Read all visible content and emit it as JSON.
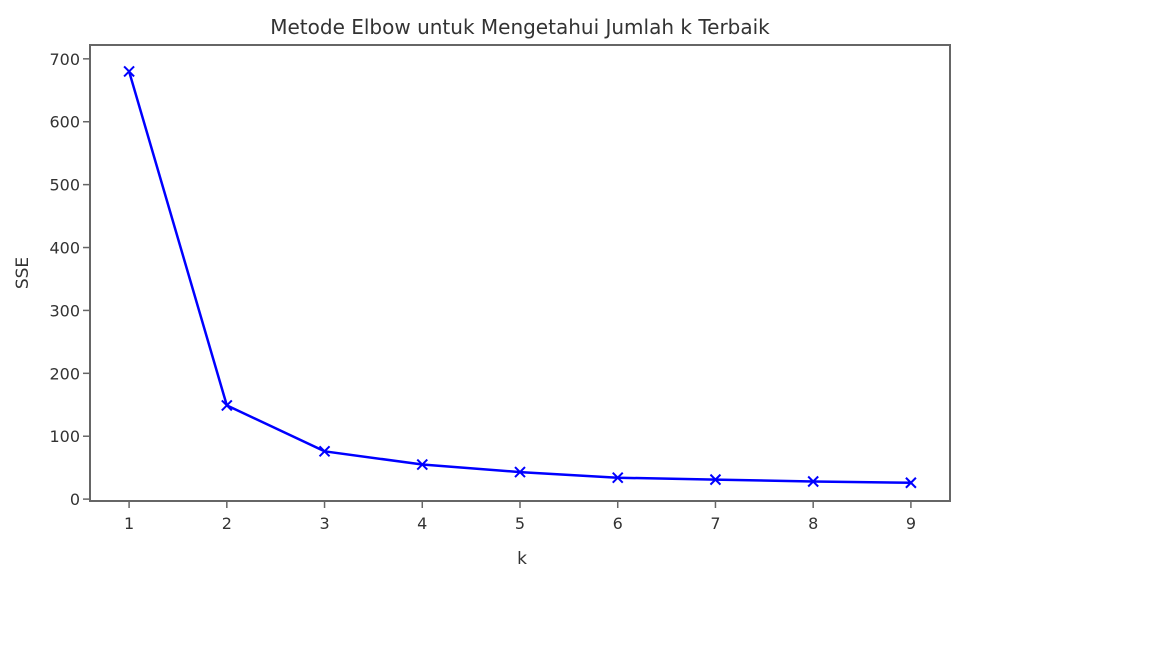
{
  "chart_data": {
    "type": "line",
    "title": "Metode Elbow untuk Mengetahui Jumlah k Terbaik",
    "xlabel": "k",
    "ylabel": "SSE",
    "x": [
      1,
      2,
      3,
      4,
      5,
      6,
      7,
      8,
      9
    ],
    "series": [
      {
        "values": [
          680,
          149,
          76,
          55,
          43,
          34,
          31,
          28,
          26
        ],
        "color": "#0000ff",
        "marker": "x"
      }
    ],
    "xticks": [
      "1",
      "2",
      "3",
      "4",
      "5",
      "6",
      "7",
      "8",
      "9"
    ],
    "yticks": [
      "0",
      "100",
      "200",
      "300",
      "400",
      "500",
      "600",
      "700"
    ],
    "xlim": [
      0.6,
      9.4
    ],
    "ylim": [
      -3,
      722
    ],
    "grid": false
  }
}
